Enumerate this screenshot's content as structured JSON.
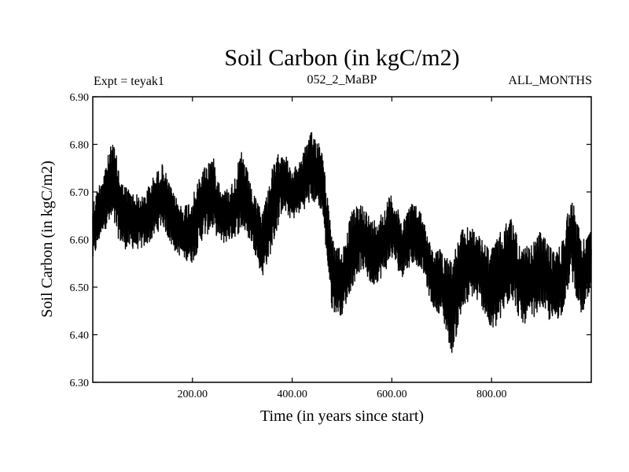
{
  "chart_data": {
    "type": "line",
    "title": "Soil Carbon (in kgC/m2)",
    "subtitle_left": "Expt = teyak1",
    "subtitle_center": "052_2_MaBP",
    "subtitle_right": "ALL_MONTHS",
    "xlabel": "Time (in years since start)",
    "ylabel": "Soil Carbon (in kgC/m2)",
    "xlim": [
      0,
      1000
    ],
    "ylim": [
      6.3,
      6.9
    ],
    "xticks": [
      200,
      400,
      600,
      800
    ],
    "xtick_labels": [
      "200.00",
      "400.00",
      "600.00",
      "800.00"
    ],
    "yticks": [
      6.3,
      6.4,
      6.5,
      6.6,
      6.7,
      6.8,
      6.9
    ],
    "ytick_labels": [
      "6.30",
      "6.40",
      "6.50",
      "6.60",
      "6.70",
      "6.80",
      "6.90"
    ],
    "grid": false,
    "series": [
      {
        "name": "Soil Carbon",
        "color": "#000000",
        "envelope": {
          "x": [
            0,
            20,
            40,
            60,
            80,
            100,
            120,
            140,
            160,
            180,
            200,
            220,
            240,
            260,
            280,
            300,
            320,
            340,
            360,
            380,
            400,
            420,
            440,
            460,
            480,
            500,
            520,
            540,
            560,
            580,
            600,
            620,
            640,
            660,
            680,
            700,
            720,
            740,
            760,
            780,
            800,
            820,
            840,
            860,
            880,
            900,
            920,
            940,
            960,
            980,
            1000
          ],
          "upper": [
            6.68,
            6.74,
            6.81,
            6.72,
            6.7,
            6.69,
            6.73,
            6.76,
            6.7,
            6.67,
            6.69,
            6.75,
            6.78,
            6.7,
            6.72,
            6.79,
            6.7,
            6.66,
            6.75,
            6.8,
            6.74,
            6.78,
            6.83,
            6.8,
            6.6,
            6.58,
            6.66,
            6.68,
            6.64,
            6.66,
            6.7,
            6.64,
            6.68,
            6.66,
            6.58,
            6.58,
            6.56,
            6.62,
            6.63,
            6.6,
            6.58,
            6.62,
            6.65,
            6.58,
            6.59,
            6.62,
            6.58,
            6.59,
            6.7,
            6.6,
            6.62
          ],
          "lower": [
            6.55,
            6.62,
            6.63,
            6.58,
            6.58,
            6.58,
            6.6,
            6.63,
            6.58,
            6.56,
            6.55,
            6.6,
            6.62,
            6.59,
            6.6,
            6.62,
            6.59,
            6.52,
            6.58,
            6.66,
            6.64,
            6.66,
            6.68,
            6.66,
            6.45,
            6.44,
            6.5,
            6.54,
            6.5,
            6.52,
            6.56,
            6.52,
            6.55,
            6.54,
            6.46,
            6.44,
            6.36,
            6.44,
            6.48,
            6.46,
            6.4,
            6.43,
            6.48,
            6.42,
            6.43,
            6.46,
            6.42,
            6.44,
            6.52,
            6.44,
            6.48
          ]
        }
      }
    ]
  }
}
